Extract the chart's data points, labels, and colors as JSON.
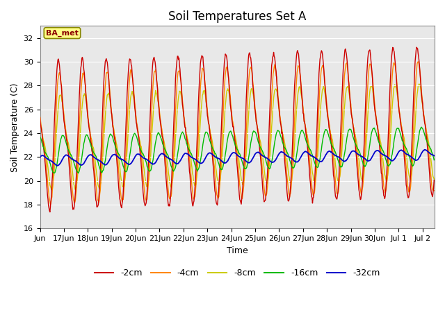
{
  "title": "Soil Temperatures Set A",
  "xlabel": "Time",
  "ylabel": "Soil Temperature (C)",
  "ylim": [
    16,
    33
  ],
  "yticks": [
    16,
    18,
    20,
    22,
    24,
    26,
    28,
    30,
    32
  ],
  "annotation_text": "BA_met",
  "colors": {
    "-2cm": "#cc0000",
    "-4cm": "#ff8800",
    "-8cm": "#cccc00",
    "-16cm": "#00bb00",
    "-32cm": "#0000cc"
  },
  "legend_labels": [
    "-2cm",
    "-4cm",
    "-8cm",
    "-16cm",
    "-32cm"
  ],
  "background_color": "#e8e8e8",
  "title_fontsize": 12,
  "axis_fontsize": 9,
  "tick_fontsize": 8
}
